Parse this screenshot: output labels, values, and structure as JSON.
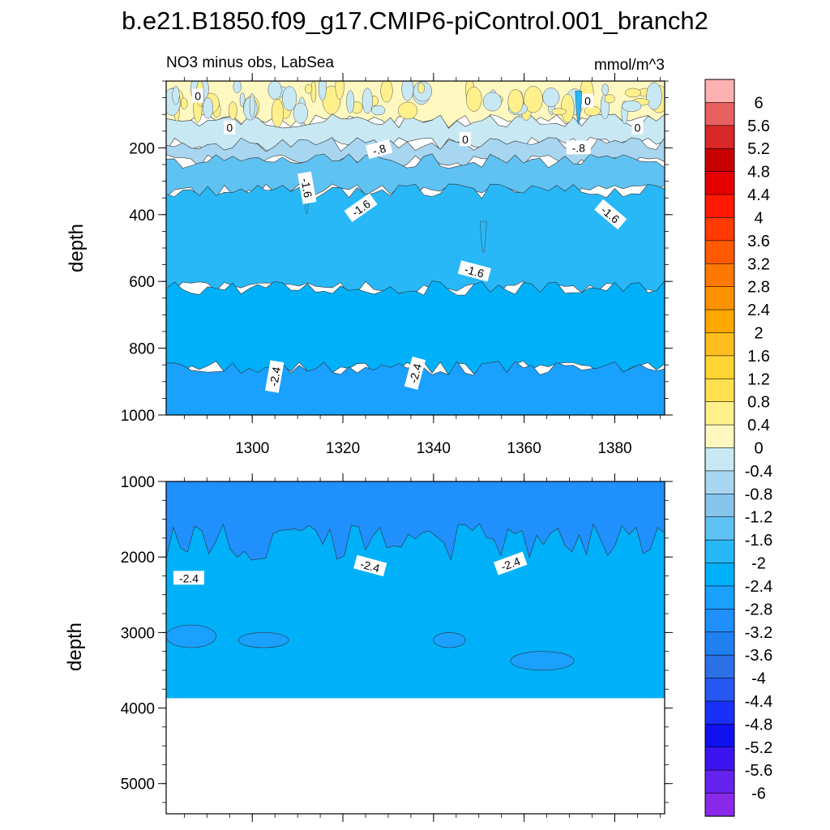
{
  "figure": {
    "title": "b.e21.B1850.f09_g17.CMIP6-piControl.001_branch2",
    "left_string": "NO3 minus obs, LabSea",
    "right_string": "mmol/m^3"
  },
  "chart_data": [
    {
      "type": "heatmap",
      "name": "upper-panel",
      "xlabel": "",
      "ylabel": "depth",
      "xlim": [
        1281,
        1391
      ],
      "ylim": [
        0,
        1000
      ],
      "y_reversed": true,
      "xticks": [
        1300,
        1320,
        1340,
        1360,
        1380
      ],
      "xtick_labels": [
        "1300",
        "1320",
        "1340",
        "1360",
        "1380"
      ],
      "yticks": [
        200,
        400,
        600,
        800,
        1000
      ],
      "ytick_labels": [
        "200",
        "400",
        "600",
        "800",
        "1000"
      ],
      "depth_bands": [
        {
          "top": 0,
          "bottom": 120,
          "value": 0.2
        },
        {
          "top": 120,
          "bottom": 190,
          "value": -0.2
        },
        {
          "top": 190,
          "bottom": 240,
          "value": -0.6
        },
        {
          "top": 240,
          "bottom": 330,
          "value": -1.4
        },
        {
          "top": 330,
          "bottom": 620,
          "value": -1.8
        },
        {
          "top": 620,
          "bottom": 860,
          "value": -2.2
        },
        {
          "top": 860,
          "bottom": 1000,
          "value": -2.6
        }
      ],
      "contour_labels": [
        {
          "text": "0",
          "x": 1288,
          "depth": 45,
          "angle": 0
        },
        {
          "text": "0",
          "x": 1295,
          "depth": 140,
          "angle": 0
        },
        {
          "text": "0",
          "x": 1347,
          "depth": 175,
          "angle": 0
        },
        {
          "text": "0",
          "x": 1374,
          "depth": 60,
          "angle": 0
        },
        {
          "text": "0",
          "x": 1385,
          "depth": 140,
          "angle": 0
        },
        {
          "text": "-.8",
          "x": 1328,
          "depth": 205,
          "angle": -15
        },
        {
          "text": "-.8",
          "x": 1372,
          "depth": 200,
          "angle": 0
        },
        {
          "text": "-1.6",
          "x": 1312,
          "depth": 320,
          "angle": 80
        },
        {
          "text": "-1.6",
          "x": 1324,
          "depth": 380,
          "angle": -35
        },
        {
          "text": "-1.6",
          "x": 1349,
          "depth": 570,
          "angle": 15
        },
        {
          "text": "-1.6",
          "x": 1379,
          "depth": 400,
          "angle": 40
        },
        {
          "text": "-2.4",
          "x": 1305,
          "depth": 885,
          "angle": -80
        },
        {
          "text": "-2.4",
          "x": 1336,
          "depth": 875,
          "angle": -75
        }
      ]
    },
    {
      "type": "heatmap",
      "name": "lower-panel",
      "xlabel": "",
      "ylabel": "depth",
      "xlim": [
        1281,
        1391
      ],
      "ylim": [
        1000,
        5400
      ],
      "y_reversed": true,
      "yticks": [
        1000,
        2000,
        3000,
        4000,
        5000
      ],
      "ytick_labels": [
        "1000",
        "2000",
        "3000",
        "4000",
        "5000"
      ],
      "data_bottom_depth": 3870,
      "depth_bands": [
        {
          "top": 1000,
          "bottom": 1800,
          "value": -2.9
        },
        {
          "top": 1800,
          "bottom": 3870,
          "value": -2.2
        }
      ],
      "patches": [
        {
          "x0": 1281,
          "x1": 1292,
          "depth0": 2900,
          "depth1": 3200,
          "value": -2.6
        },
        {
          "x0": 1297,
          "x1": 1308,
          "depth0": 3000,
          "depth1": 3200,
          "value": -2.6
        },
        {
          "x0": 1340,
          "x1": 1347,
          "depth0": 3000,
          "depth1": 3200,
          "value": -2.6
        },
        {
          "x0": 1357,
          "x1": 1371,
          "depth0": 3250,
          "depth1": 3500,
          "value": -2.6
        }
      ],
      "contour_labels": [
        {
          "text": "-2.4",
          "x": 1286,
          "depth": 2280,
          "angle": 0
        },
        {
          "text": "-2.4",
          "x": 1326,
          "depth": 2120,
          "angle": 15
        },
        {
          "text": "-2.4",
          "x": 1357,
          "depth": 2090,
          "angle": -20
        }
      ]
    },
    {
      "type": "colorbar",
      "name": "colorbar",
      "levels": [
        "6",
        "5.6",
        "5.2",
        "4.8",
        "4.4",
        "4",
        "3.6",
        "3.2",
        "2.8",
        "2.4",
        "2",
        "1.6",
        "1.2",
        "0.8",
        "0.4",
        "0",
        "-0.4",
        "-0.8",
        "-1.2",
        "-1.6",
        "-2",
        "-2.4",
        "-2.8",
        "-3.2",
        "-3.6",
        "-4",
        "-4.4",
        "-4.8",
        "-5.2",
        "-5.6",
        "-6"
      ],
      "colors": [
        "#ffb0b0",
        "#e86060",
        "#d82828",
        "#c80000",
        "#e60000",
        "#ff1a00",
        "#ff3a00",
        "#ff5a00",
        "#ff7800",
        "#ff9200",
        "#ffa800",
        "#ffbe1e",
        "#ffd432",
        "#ffe050",
        "#fff08c",
        "#fff8c0",
        "#c8e8f4",
        "#a8d6f0",
        "#86c4ec",
        "#5ec2f2",
        "#28b8f8",
        "#00b0f8",
        "#1aa0ff",
        "#2090ff",
        "#2080f0",
        "#2c70e8",
        "#2458f0",
        "#1a30f8",
        "#1010f0",
        "#3c14f0",
        "#6622ee",
        "#8a2ae8"
      ]
    }
  ]
}
